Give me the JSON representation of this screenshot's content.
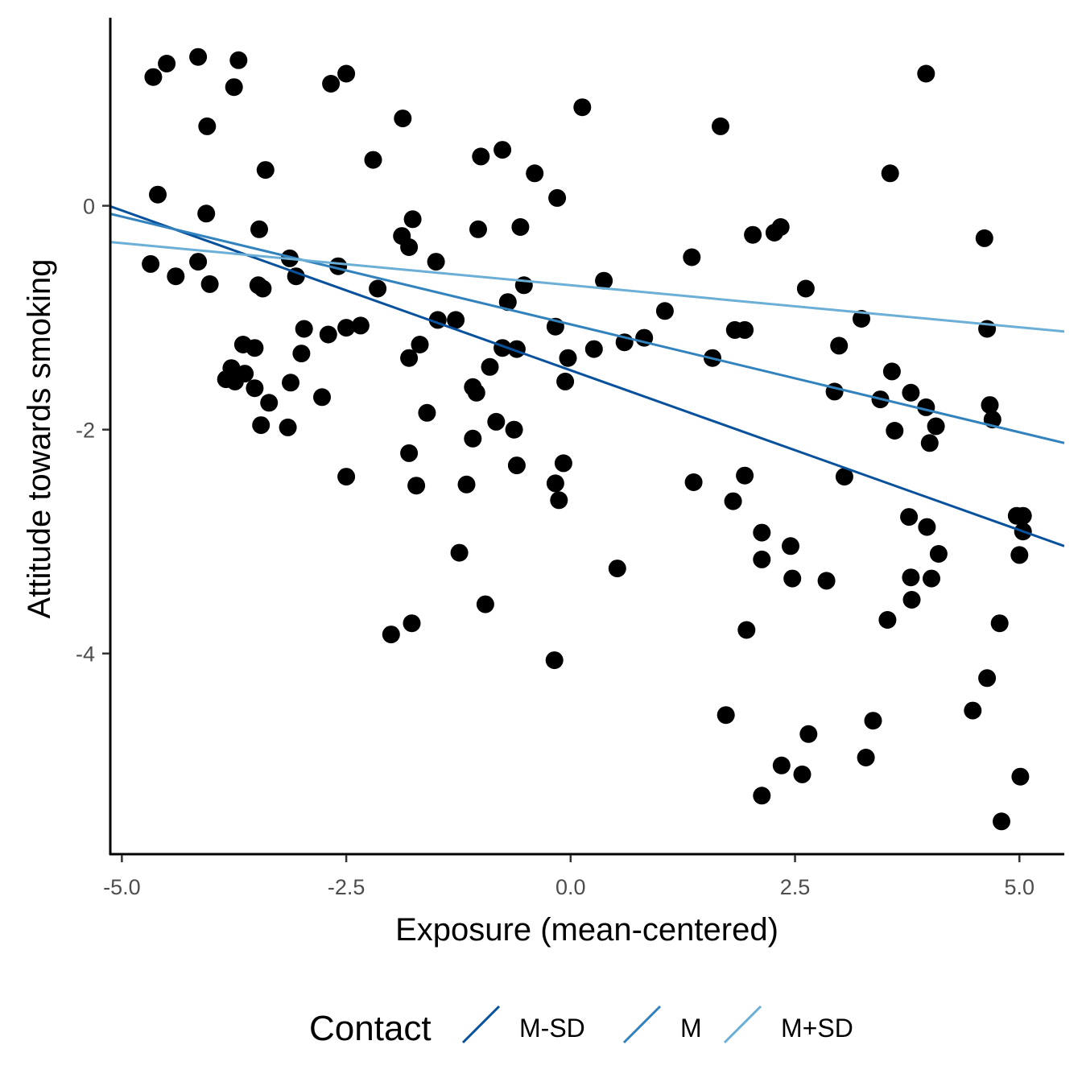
{
  "chart_data": {
    "type": "scatter",
    "xlabel": "Exposure (mean-centered)",
    "ylabel": "Attitude towards smoking",
    "xlim": [
      -5.12,
      5.5
    ],
    "ylim": [
      -5.8,
      1.68
    ],
    "x_ticks": [
      -5.0,
      -2.5,
      0.0,
      2.5,
      5.0
    ],
    "x_tick_labels": [
      "-5.0",
      "-2.5",
      "0.0",
      "2.5",
      "5.0"
    ],
    "y_ticks": [
      0,
      -2,
      -4
    ],
    "y_tick_labels": [
      "0",
      "-2",
      "-4"
    ],
    "grid": false,
    "legend": {
      "position": "bottom",
      "title": "Contact",
      "entries": [
        "M-SD",
        "M",
        "M+SD"
      ]
    },
    "point_color": "#000000",
    "points": [
      [
        -4.65,
        1.15
      ],
      [
        -4.5,
        1.27
      ],
      [
        -4.15,
        1.33
      ],
      [
        -3.7,
        1.3
      ],
      [
        -3.75,
        1.06
      ],
      [
        -2.67,
        1.09
      ],
      [
        -2.5,
        1.18
      ],
      [
        -4.05,
        0.71
      ],
      [
        -3.4,
        0.32
      ],
      [
        -4.6,
        0.1
      ],
      [
        -4.06,
        -0.07
      ],
      [
        -4.68,
        -0.52
      ],
      [
        -4.15,
        -0.5
      ],
      [
        -4.4,
        -0.63
      ],
      [
        -4.02,
        -0.7
      ],
      [
        -3.48,
        -0.71
      ],
      [
        -3.43,
        -0.74
      ],
      [
        -3.47,
        -0.21
      ],
      [
        -3.13,
        -0.47
      ],
      [
        -3.06,
        -0.63
      ],
      [
        -2.59,
        -0.54
      ],
      [
        -2.2,
        0.41
      ],
      [
        -1.87,
        0.78
      ],
      [
        -1.88,
        -0.27
      ],
      [
        -1.8,
        -0.37
      ],
      [
        -1.76,
        -0.12
      ],
      [
        -1.5,
        -0.5
      ],
      [
        -2.15,
        -0.74
      ],
      [
        -1.0,
        0.44
      ],
      [
        -0.76,
        0.5
      ],
      [
        -0.4,
        0.29
      ],
      [
        -0.15,
        0.07
      ],
      [
        0.13,
        0.88
      ],
      [
        -1.03,
        -0.21
      ],
      [
        -0.56,
        -0.19
      ],
      [
        -0.52,
        -0.71
      ],
      [
        0.37,
        -0.67
      ],
      [
        -3.84,
        -1.55
      ],
      [
        -3.78,
        -1.45
      ],
      [
        -3.74,
        -1.57
      ],
      [
        -3.65,
        -1.24
      ],
      [
        -3.63,
        -1.5
      ],
      [
        -3.52,
        -1.27
      ],
      [
        -3.52,
        -1.63
      ],
      [
        -3.36,
        -1.76
      ],
      [
        -3.45,
        -1.96
      ],
      [
        -3.15,
        -1.98
      ],
      [
        -3.12,
        -1.58
      ],
      [
        -2.97,
        -1.1
      ],
      [
        -3.0,
        -1.32
      ],
      [
        -2.77,
        -1.71
      ],
      [
        -2.7,
        -1.15
      ],
      [
        -2.5,
        -1.09
      ],
      [
        -2.34,
        -1.07
      ],
      [
        -2.5,
        -2.42
      ],
      [
        -1.8,
        -1.36
      ],
      [
        -1.68,
        -1.24
      ],
      [
        -1.8,
        -2.21
      ],
      [
        -1.72,
        -2.5
      ],
      [
        -1.6,
        -1.85
      ],
      [
        -1.48,
        -1.02
      ],
      [
        -1.28,
        -1.02
      ],
      [
        -1.09,
        -1.62
      ],
      [
        -1.05,
        -1.67
      ],
      [
        -1.09,
        -2.08
      ],
      [
        -1.16,
        -2.49
      ],
      [
        -1.24,
        -3.1
      ],
      [
        -0.9,
        -1.44
      ],
      [
        -0.83,
        -1.93
      ],
      [
        -0.7,
        -0.86
      ],
      [
        -0.76,
        -1.27
      ],
      [
        -0.6,
        -1.28
      ],
      [
        -0.63,
        -2.0
      ],
      [
        -0.6,
        -2.32
      ],
      [
        -0.95,
        -3.56
      ],
      [
        -1.77,
        -3.73
      ],
      [
        -2.0,
        -3.83
      ],
      [
        -0.17,
        -1.08
      ],
      [
        -0.03,
        -1.36
      ],
      [
        -0.06,
        -1.57
      ],
      [
        -0.08,
        -2.3
      ],
      [
        -0.17,
        -2.48
      ],
      [
        -0.13,
        -2.63
      ],
      [
        -0.18,
        -4.06
      ],
      [
        0.26,
        -1.28
      ],
      [
        0.52,
        -3.24
      ],
      [
        0.6,
        -1.22
      ],
      [
        0.82,
        -1.18
      ],
      [
        1.05,
        -0.94
      ],
      [
        1.35,
        -0.46
      ],
      [
        1.37,
        -2.47
      ],
      [
        1.58,
        -1.36
      ],
      [
        1.67,
        0.71
      ],
      [
        1.73,
        -4.55
      ],
      [
        1.81,
        -2.64
      ],
      [
        1.83,
        -1.11
      ],
      [
        1.94,
        -1.11
      ],
      [
        1.94,
        -2.41
      ],
      [
        1.96,
        -3.79
      ],
      [
        2.03,
        -0.26
      ],
      [
        2.13,
        -2.92
      ],
      [
        2.13,
        -3.16
      ],
      [
        2.13,
        -5.27
      ],
      [
        2.27,
        -0.24
      ],
      [
        2.34,
        -0.19
      ],
      [
        2.35,
        -5.0
      ],
      [
        2.45,
        -3.04
      ],
      [
        2.47,
        -3.33
      ],
      [
        2.58,
        -5.08
      ],
      [
        2.62,
        -0.74
      ],
      [
        2.65,
        -4.72
      ],
      [
        2.85,
        -3.35
      ],
      [
        2.94,
        -1.66
      ],
      [
        2.99,
        -1.25
      ],
      [
        3.05,
        -2.42
      ],
      [
        3.24,
        -1.01
      ],
      [
        3.29,
        -4.93
      ],
      [
        3.37,
        -4.6
      ],
      [
        3.45,
        -1.73
      ],
      [
        3.53,
        -3.7
      ],
      [
        3.56,
        0.29
      ],
      [
        3.58,
        -1.48
      ],
      [
        3.61,
        -2.01
      ],
      [
        3.79,
        -1.67
      ],
      [
        3.77,
        -2.78
      ],
      [
        3.79,
        -3.32
      ],
      [
        3.8,
        -3.52
      ],
      [
        3.96,
        -1.8
      ],
      [
        3.97,
        -2.87
      ],
      [
        4.0,
        -2.12
      ],
      [
        4.02,
        -3.33
      ],
      [
        4.07,
        -1.97
      ],
      [
        4.1,
        -3.11
      ],
      [
        3.96,
        1.18
      ],
      [
        4.48,
        -4.51
      ],
      [
        4.61,
        -0.29
      ],
      [
        4.64,
        -1.1
      ],
      [
        4.64,
        -4.22
      ],
      [
        4.67,
        -1.78
      ],
      [
        4.7,
        -1.91
      ],
      [
        4.78,
        -3.73
      ],
      [
        4.8,
        -5.5
      ],
      [
        4.97,
        -2.77
      ],
      [
        5.0,
        -3.12
      ],
      [
        5.04,
        -2.77
      ],
      [
        5.04,
        -2.91
      ],
      [
        5.01,
        -5.1
      ]
    ],
    "series": [
      {
        "name": "M-SD",
        "color": "#08519c",
        "intercept": -1.47,
        "slope": -0.2855
      },
      {
        "name": "M",
        "color": "#3182bd",
        "intercept": -1.06,
        "slope": -0.1927
      },
      {
        "name": "M+SD",
        "color": "#6baed6",
        "intercept": -0.71,
        "slope": -0.0752
      }
    ]
  }
}
